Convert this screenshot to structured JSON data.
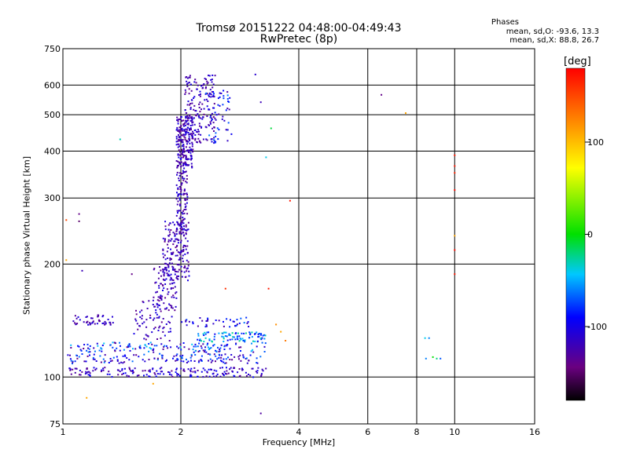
{
  "chart_data": {
    "type": "scatter",
    "title": "Tromsø 20151222 04:48:00-04:49:43",
    "subtitle": "RwPretec (8p)",
    "xlabel": "Frequency [MHz]",
    "ylabel": "Stationary phase Virtual Height [km]",
    "x_scale": "log",
    "y_scale": "log",
    "xlim": [
      1,
      16
    ],
    "ylim": [
      75,
      750
    ],
    "x_ticks": [
      1,
      2,
      4,
      6,
      8,
      10,
      16
    ],
    "x_tick_labels": [
      "1",
      "2",
      "4",
      "6",
      "8",
      "10",
      "16"
    ],
    "y_ticks": [
      75,
      100,
      200,
      300,
      400,
      500,
      600,
      750
    ],
    "y_tick_labels": [
      "75",
      "100",
      "200",
      "300",
      "400",
      "500",
      "600",
      "750"
    ],
    "grid": true,
    "legend": {
      "title": "Phases",
      "entries": [
        "mean, sd,O: -93.6, 13.3",
        "mean, sd,X:  88.8, 26.7"
      ],
      "placement": "top-right"
    },
    "colorbar": {
      "label": "[deg]",
      "range": [
        -180,
        180
      ],
      "ticks": [
        100,
        0,
        -100
      ],
      "tick_labels": [
        "100",
        "0",
        "-100"
      ]
    },
    "series": [
      {
        "points": [
          {
            "x": 6.5,
            "y": 565,
            "phase": -140
          },
          {
            "x": 7.5,
            "y": 505,
            "phase": 110
          },
          {
            "x": 3.4,
            "y": 460,
            "phase": -10
          },
          {
            "x": 1.4,
            "y": 430,
            "phase": -30
          },
          {
            "x": 3.3,
            "y": 385,
            "phase": -40
          },
          {
            "x": 3.1,
            "y": 640,
            "phase": -110
          },
          {
            "x": 3.2,
            "y": 540,
            "phase": -120
          },
          {
            "x": 3.8,
            "y": 295,
            "phase": 170
          },
          {
            "x": 10.0,
            "y": 390,
            "phase": 170
          },
          {
            "x": 10.0,
            "y": 365,
            "phase": 170
          },
          {
            "x": 10.0,
            "y": 350,
            "phase": 165
          },
          {
            "x": 10.0,
            "y": 315,
            "phase": 175
          },
          {
            "x": 10.0,
            "y": 238,
            "phase": 110
          },
          {
            "x": 10.0,
            "y": 218,
            "phase": 175
          },
          {
            "x": 10.0,
            "y": 188,
            "phase": 170
          },
          {
            "x": 8.4,
            "y": 127,
            "phase": -40
          },
          {
            "x": 8.6,
            "y": 127,
            "phase": -60
          },
          {
            "x": 8.45,
            "y": 112,
            "phase": -60
          },
          {
            "x": 8.8,
            "y": 113,
            "phase": 0
          },
          {
            "x": 9.0,
            "y": 112,
            "phase": -20
          },
          {
            "x": 9.2,
            "y": 112,
            "phase": -70
          },
          {
            "x": 1.02,
            "y": 262,
            "phase": 150
          },
          {
            "x": 1.1,
            "y": 272,
            "phase": -140
          },
          {
            "x": 1.1,
            "y": 260,
            "phase": -150
          },
          {
            "x": 1.02,
            "y": 205,
            "phase": 110
          },
          {
            "x": 1.12,
            "y": 192,
            "phase": -120
          },
          {
            "x": 1.5,
            "y": 188,
            "phase": -140
          },
          {
            "x": 1.15,
            "y": 88,
            "phase": 110
          },
          {
            "x": 3.2,
            "y": 80,
            "phase": -130
          },
          {
            "x": 1.7,
            "y": 96,
            "phase": 110
          },
          {
            "x": 2.6,
            "y": 172,
            "phase": 160
          },
          {
            "x": 3.35,
            "y": 172,
            "phase": 170
          },
          {
            "x": 3.5,
            "y": 138,
            "phase": 120
          },
          {
            "x": 3.6,
            "y": 132,
            "phase": 110
          },
          {
            "x": 3.7,
            "y": 125,
            "phase": 130
          }
        ]
      }
    ],
    "clusters": [
      {
        "type": "blob",
        "x_range": [
          1.95,
          2.15
        ],
        "y_range": [
          360,
          500
        ],
        "count": 220,
        "phase_range": [
          -140,
          -100
        ]
      },
      {
        "type": "blob",
        "x_range": [
          2.05,
          2.45
        ],
        "y_range": [
          420,
          640
        ],
        "count": 160,
        "phase_range": [
          -140,
          -100
        ]
      },
      {
        "type": "blob",
        "x_range": [
          2.3,
          2.7
        ],
        "y_range": [
          420,
          580
        ],
        "count": 60,
        "phase_range": [
          -130,
          -60
        ]
      },
      {
        "type": "blob",
        "x_range": [
          1.95,
          2.08
        ],
        "y_range": [
          240,
          360
        ],
        "count": 110,
        "phase_range": [
          -140,
          -100
        ]
      },
      {
        "type": "blob",
        "x_range": [
          1.8,
          2.1
        ],
        "y_range": [
          180,
          260
        ],
        "count": 170,
        "phase_range": [
          -140,
          -100
        ]
      },
      {
        "type": "blob",
        "x_range": [
          1.7,
          1.95
        ],
        "y_range": [
          150,
          200
        ],
        "count": 80,
        "phase_range": [
          -140,
          -100
        ]
      },
      {
        "type": "blob",
        "x_range": [
          1.5,
          1.9
        ],
        "y_range": [
          125,
          160
        ],
        "count": 70,
        "phase_range": [
          -140,
          -100
        ]
      },
      {
        "type": "curve",
        "x_range": [
          1.02,
          3.3
        ],
        "y": 103,
        "count": 180,
        "phase_range": [
          -140,
          -90
        ]
      },
      {
        "type": "curve",
        "x_range": [
          1.02,
          3.2
        ],
        "y": 112,
        "count": 140,
        "phase_range": [
          -140,
          -60
        ]
      },
      {
        "type": "curve",
        "x_range": [
          1.02,
          3.3
        ],
        "y": 120,
        "count": 140,
        "phase_range": [
          -140,
          -40
        ]
      },
      {
        "type": "curve",
        "x_range": [
          1.05,
          1.35
        ],
        "y": 142,
        "count": 50,
        "phase_range": [
          -140,
          -100
        ]
      },
      {
        "type": "curve",
        "x_range": [
          2.2,
          3.3
        ],
        "y": 128,
        "count": 90,
        "phase_range": [
          -100,
          -20
        ]
      },
      {
        "type": "curve",
        "x_range": [
          2.0,
          3.0
        ],
        "y": 140,
        "count": 40,
        "phase_range": [
          -130,
          -60
        ]
      }
    ]
  }
}
